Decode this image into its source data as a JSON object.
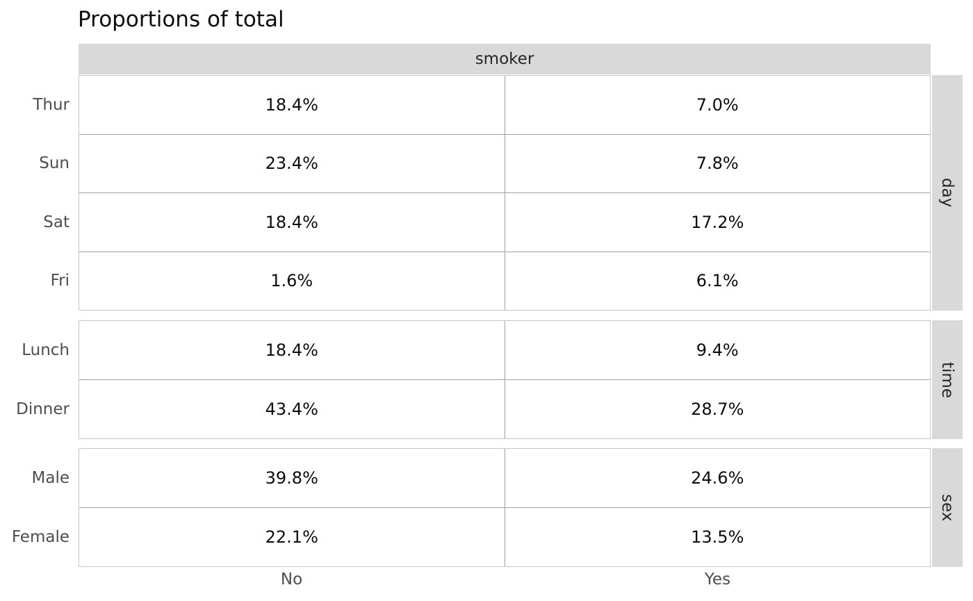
{
  "title": "Proportions of total",
  "col_header": "smoker",
  "columns": [
    "No",
    "Yes"
  ],
  "facets": [
    {
      "label": "day",
      "rows": [
        {
          "label": "Thur",
          "values": [
            "18.4%",
            "7.0%"
          ]
        },
        {
          "label": "Sun",
          "values": [
            "23.4%",
            "7.8%"
          ]
        },
        {
          "label": "Sat",
          "values": [
            "18.4%",
            "17.2%"
          ]
        },
        {
          "label": "Fri",
          "values": [
            "1.6%",
            "6.1%"
          ]
        }
      ]
    },
    {
      "label": "time",
      "rows": [
        {
          "label": "Lunch",
          "values": [
            "18.4%",
            "9.4%"
          ]
        },
        {
          "label": "Dinner",
          "values": [
            "43.4%",
            "28.7%"
          ]
        }
      ]
    },
    {
      "label": "sex",
      "rows": [
        {
          "label": "Male",
          "values": [
            "39.8%",
            "24.6%"
          ]
        },
        {
          "label": "Female",
          "values": [
            "22.1%",
            "13.5%"
          ]
        }
      ]
    }
  ],
  "colors": {
    "strip_background": "#d9d9d9",
    "panel_border": "#c6c6c6",
    "inner_grid": "#a3a3a3",
    "label_text": "#4d4d4d",
    "value_text": "#0d0d0d"
  },
  "chart_data": {
    "type": "table",
    "title": "Proportions of total",
    "column_group_label": "smoker",
    "columns": [
      "No",
      "Yes"
    ],
    "unit": "%",
    "row_groups": [
      {
        "name": "day",
        "rows": [
          "Thur",
          "Sun",
          "Sat",
          "Fri"
        ],
        "values": [
          [
            18.4,
            7.0
          ],
          [
            23.4,
            7.8
          ],
          [
            18.4,
            17.2
          ],
          [
            1.6,
            6.1
          ]
        ]
      },
      {
        "name": "time",
        "rows": [
          "Lunch",
          "Dinner"
        ],
        "values": [
          [
            18.4,
            9.4
          ],
          [
            43.4,
            28.7
          ]
        ]
      },
      {
        "name": "sex",
        "rows": [
          "Male",
          "Female"
        ],
        "values": [
          [
            39.8,
            24.6
          ],
          [
            22.1,
            13.5
          ]
        ]
      }
    ],
    "layout": {
      "facet_strips_right": [
        "day",
        "time",
        "sex"
      ],
      "column_strip_top": "smoker",
      "grid": "table-borders",
      "legend": "none"
    }
  }
}
